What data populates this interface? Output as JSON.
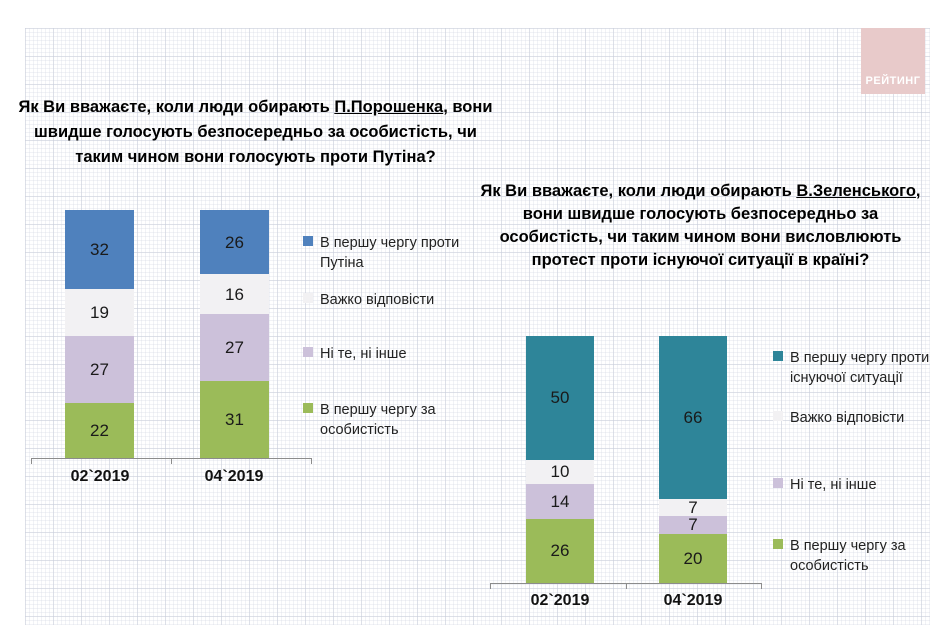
{
  "brand": {
    "logo_text": "РЕЙТИНГ",
    "logo_color": "#E8CACA"
  },
  "axis_color": "#8C8C8C",
  "chart_data": [
    {
      "type": "bar",
      "stacked": true,
      "title": {
        "pre": "Як Ви вважаєте, коли люди обирають ",
        "underlined": "П.Порошенка",
        "post": ", вони швидше голосують безпосередньо за особистість, чи таким чином вони голосують проти Путіна?"
      },
      "categories": [
        "02`2019",
        "04`2019"
      ],
      "series": [
        {
          "name": "В першу чергу проти Путіна",
          "color": "#4F81BD",
          "values": [
            32,
            26
          ]
        },
        {
          "name": "Важко відповісти",
          "color": "#F2F1F3",
          "values": [
            19,
            16
          ]
        },
        {
          "name": "Ні те, ні інше",
          "color": "#CCC1DA",
          "values": [
            27,
            27
          ]
        },
        {
          "name": "В першу чергу за особистість",
          "color": "#9BBB59",
          "values": [
            22,
            31
          ]
        }
      ],
      "series_order": "top-to-bottom",
      "ylim": [
        0,
        100
      ],
      "legend_position": "right",
      "grid": false
    },
    {
      "type": "bar",
      "stacked": true,
      "title": {
        "pre": "Як Ви вважаєте, коли люди обирають ",
        "underlined": "В.Зеленського",
        "post": ", вони швидше голосують безпосередньо за особистість, чи таким чином вони висловлюють протест проти існуючої ситуації в країні?"
      },
      "categories": [
        "02`2019",
        "04`2019"
      ],
      "series": [
        {
          "name": "В першу чергу проти існуючої ситуації",
          "color": "#2E8599",
          "values": [
            50,
            66
          ]
        },
        {
          "name": "Важко відповісти",
          "color": "#F2F1F3",
          "values": [
            10,
            7
          ]
        },
        {
          "name": "Ні те, ні інше",
          "color": "#CCC1DA",
          "values": [
            14,
            7
          ]
        },
        {
          "name": "В першу чергу за особистість",
          "color": "#9BBB59",
          "values": [
            26,
            20
          ]
        }
      ],
      "series_order": "top-to-bottom",
      "ylim": [
        0,
        100
      ],
      "legend_position": "right",
      "grid": false
    }
  ]
}
